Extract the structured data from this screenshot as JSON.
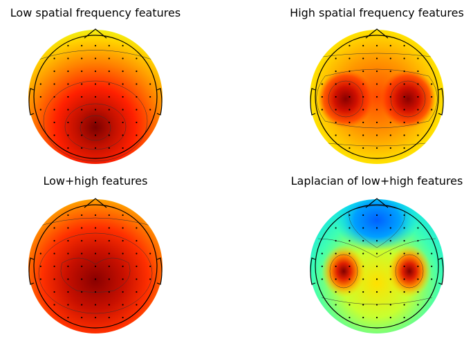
{
  "chart_data": [
    {
      "type": "heatmap",
      "subtype": "topographic-scalp-map",
      "title": "Low spatial frequency features",
      "colormap": "jet",
      "pattern": "single posterior-central maximum",
      "color_range": [
        "yellow-green",
        "dark red"
      ],
      "electrodes_shown": true,
      "contours_shown": true
    },
    {
      "type": "heatmap",
      "subtype": "topographic-scalp-map",
      "title": "High spatial frequency features",
      "colormap": "jet",
      "pattern": "bilateral temporal maxima",
      "color_range": [
        "yellow-green",
        "dark red"
      ],
      "electrodes_shown": true,
      "contours_shown": true
    },
    {
      "type": "heatmap",
      "subtype": "topographic-scalp-map",
      "title": "Low+high features",
      "colormap": "jet",
      "pattern": "broad central maximum with two lobes",
      "color_range": [
        "yellow",
        "dark red"
      ],
      "electrodes_shown": true,
      "contours_shown": true
    },
    {
      "type": "heatmap",
      "subtype": "topographic-scalp-map",
      "title": "Laplacian of low+high features",
      "colormap": "jet",
      "pattern": "bilateral temporal maxima, frontal minimum",
      "color_range": [
        "blue",
        "dark red"
      ],
      "electrodes_shown": true,
      "contours_shown": true
    }
  ]
}
